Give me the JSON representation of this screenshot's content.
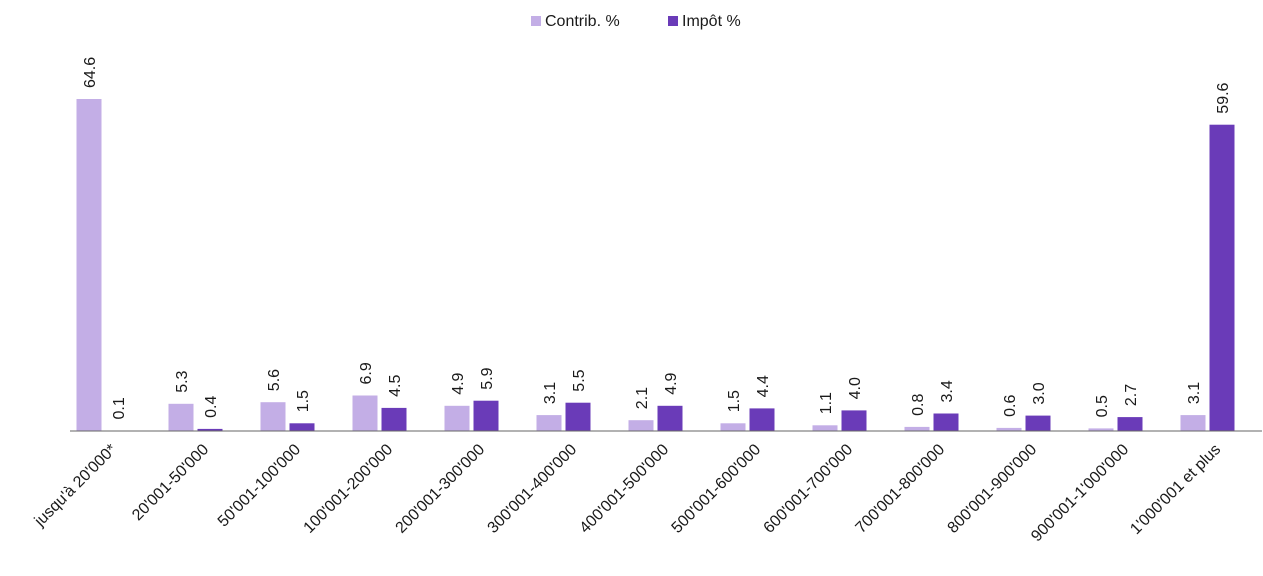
{
  "chart_data": {
    "type": "bar",
    "title": "",
    "xlabel": "",
    "ylabel": "",
    "ylim": [
      0,
      70
    ],
    "grid": false,
    "legend_position": "top-center",
    "categories": [
      "jusqu'à 20'000*",
      "20'001-50'000",
      "50'001-100'000",
      "100'001-200'000",
      "200'001-300'000",
      "300'001-400'000",
      "400'001-500'000",
      "500'001-600'000",
      "600'001-700'000",
      "700'001-800'000",
      "800'001-900'000",
      "900'001-1'000'000",
      "1'000'001 et plus"
    ],
    "series": [
      {
        "name": "Contrib. %",
        "color": "#c3aee6",
        "values": [
          64.6,
          5.3,
          5.6,
          6.9,
          4.9,
          3.1,
          2.1,
          1.5,
          1.1,
          0.8,
          0.6,
          0.5,
          3.1
        ],
        "labels": [
          "64.6",
          "5.3",
          "5.6",
          "6.9",
          "4.9",
          "3.1",
          "2.1",
          "1.5",
          "1.1",
          "0.8",
          "0.6",
          "0.5",
          "3.1"
        ]
      },
      {
        "name": "Impôt %",
        "color": "#6a3bb8",
        "values": [
          0.1,
          0.4,
          1.5,
          4.5,
          5.9,
          5.5,
          4.9,
          4.4,
          4.0,
          3.4,
          3.0,
          2.7,
          59.6
        ],
        "labels": [
          "0.1",
          "0.4",
          "1.5",
          "4.5",
          "5.9",
          "5.5",
          "4.9",
          "4.4",
          "4.0",
          "3.4",
          "3.0",
          "2.7",
          "59.6"
        ]
      }
    ]
  }
}
